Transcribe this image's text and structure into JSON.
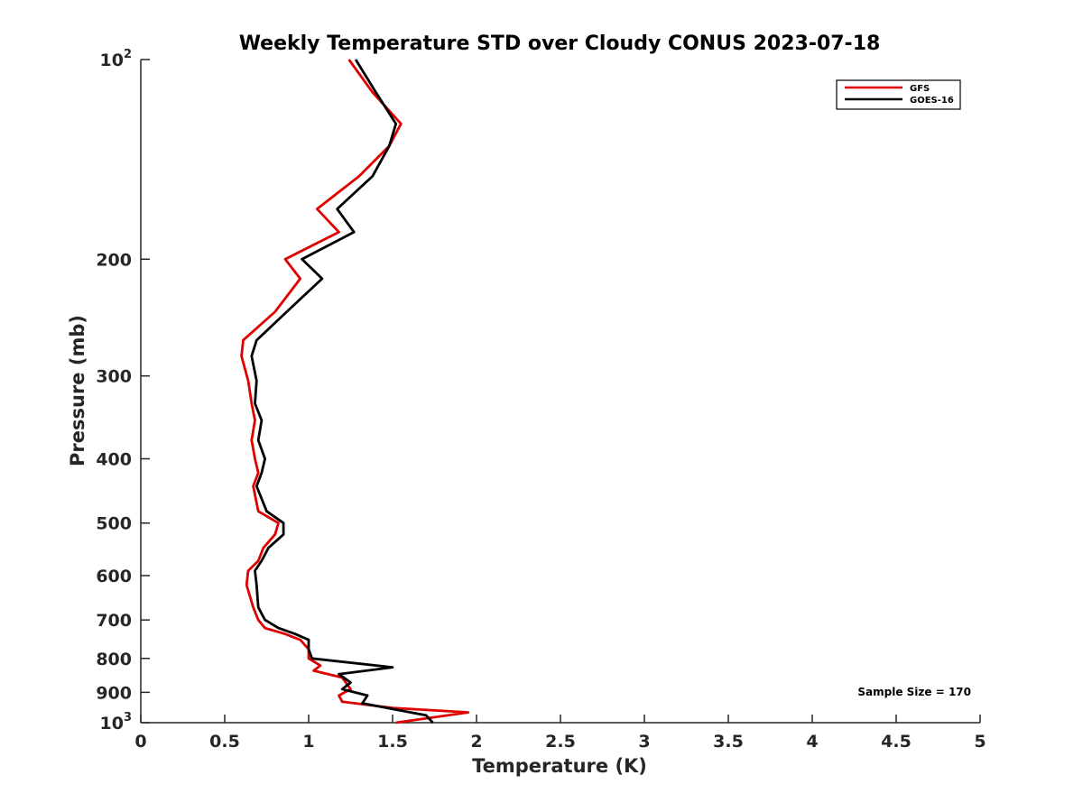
{
  "chart_data": {
    "type": "line",
    "title": "Weekly Temperature STD over Cloudy CONUS 2023-07-18",
    "xlabel": "Temperature (K)",
    "ylabel": "Pressure (mb)",
    "xlim": [
      0,
      5
    ],
    "ylim": [
      100,
      1000
    ],
    "y_scale": "log",
    "y_reversed": true,
    "x_ticks": [
      "0",
      "0.5",
      "1",
      "1.5",
      "2",
      "2.5",
      "3",
      "3.5",
      "4",
      "4.5",
      "5"
    ],
    "x_tick_values": [
      0,
      0.5,
      1,
      1.5,
      2,
      2.5,
      3,
      3.5,
      4,
      4.5,
      5
    ],
    "y_ticks": [
      {
        "value": 100,
        "base": "10",
        "exp": "2"
      },
      {
        "value": 200,
        "label": "200"
      },
      {
        "value": 300,
        "label": "300"
      },
      {
        "value": 400,
        "label": "400"
      },
      {
        "value": 500,
        "label": "500"
      },
      {
        "value": 600,
        "label": "600"
      },
      {
        "value": 700,
        "label": "700"
      },
      {
        "value": 800,
        "label": "800"
      },
      {
        "value": 900,
        "label": "900"
      },
      {
        "value": 1000,
        "base": "10",
        "exp": "3"
      }
    ],
    "grid": false,
    "legend_position": "top-right",
    "annotation": "Sample Size = 170",
    "series": [
      {
        "name": "GFS",
        "color": "#e00000",
        "points": [
          [
            1.24,
            100
          ],
          [
            1.38,
            112
          ],
          [
            1.55,
            125
          ],
          [
            1.48,
            135
          ],
          [
            1.3,
            150
          ],
          [
            1.05,
            168
          ],
          [
            1.18,
            182
          ],
          [
            0.86,
            200
          ],
          [
            0.95,
            214
          ],
          [
            0.8,
            240
          ],
          [
            0.61,
            265
          ],
          [
            0.6,
            280
          ],
          [
            0.64,
            305
          ],
          [
            0.66,
            330
          ],
          [
            0.68,
            350
          ],
          [
            0.66,
            375
          ],
          [
            0.68,
            400
          ],
          [
            0.7,
            420
          ],
          [
            0.67,
            440
          ],
          [
            0.7,
            480
          ],
          [
            0.82,
            500
          ],
          [
            0.8,
            520
          ],
          [
            0.73,
            545
          ],
          [
            0.7,
            570
          ],
          [
            0.64,
            590
          ],
          [
            0.63,
            620
          ],
          [
            0.67,
            670
          ],
          [
            0.7,
            700
          ],
          [
            0.74,
            720
          ],
          [
            0.86,
            735
          ],
          [
            0.95,
            750
          ],
          [
            1.0,
            775
          ],
          [
            1.0,
            800
          ],
          [
            1.07,
            820
          ],
          [
            1.03,
            835
          ],
          [
            1.2,
            855
          ],
          [
            1.25,
            890
          ],
          [
            1.18,
            910
          ],
          [
            1.2,
            930
          ],
          [
            1.5,
            950
          ],
          [
            1.95,
            965
          ],
          [
            1.52,
            1000
          ]
        ]
      },
      {
        "name": "GOES-16",
        "color": "#000000",
        "points": [
          [
            1.28,
            100
          ],
          [
            1.4,
            112
          ],
          [
            1.52,
            125
          ],
          [
            1.48,
            135
          ],
          [
            1.38,
            150
          ],
          [
            1.17,
            168
          ],
          [
            1.27,
            182
          ],
          [
            0.96,
            200
          ],
          [
            1.08,
            214
          ],
          [
            0.87,
            240
          ],
          [
            0.69,
            265
          ],
          [
            0.66,
            280
          ],
          [
            0.69,
            305
          ],
          [
            0.68,
            330
          ],
          [
            0.72,
            350
          ],
          [
            0.7,
            375
          ],
          [
            0.74,
            400
          ],
          [
            0.72,
            420
          ],
          [
            0.69,
            440
          ],
          [
            0.75,
            480
          ],
          [
            0.85,
            500
          ],
          [
            0.85,
            520
          ],
          [
            0.76,
            545
          ],
          [
            0.72,
            570
          ],
          [
            0.68,
            590
          ],
          [
            0.69,
            620
          ],
          [
            0.7,
            670
          ],
          [
            0.74,
            700
          ],
          [
            0.82,
            720
          ],
          [
            0.92,
            735
          ],
          [
            1.0,
            750
          ],
          [
            1.0,
            775
          ],
          [
            1.02,
            800
          ],
          [
            1.5,
            825
          ],
          [
            1.18,
            845
          ],
          [
            1.25,
            870
          ],
          [
            1.2,
            890
          ],
          [
            1.35,
            910
          ],
          [
            1.32,
            935
          ],
          [
            1.7,
            975
          ],
          [
            1.74,
            1000
          ]
        ]
      }
    ]
  }
}
